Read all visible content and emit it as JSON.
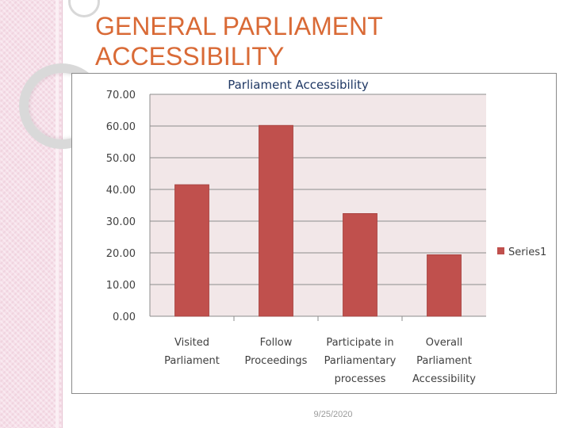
{
  "slide": {
    "title_line1": "GENERAL PARLIAMENT",
    "title_line2": "ACCESSIBILITY",
    "date": "9/25/2020"
  },
  "colors": {
    "title": "#d96a36",
    "bar": "#c0504d",
    "plot_background": "#f2e7e8"
  },
  "chart_data": {
    "type": "bar",
    "title": "Parliament Accessibility",
    "categories": [
      [
        "Visited",
        "Parliament"
      ],
      [
        "Follow",
        "Proceedings"
      ],
      [
        "Participate in",
        "Parliamentary",
        "processes"
      ],
      [
        "Overall",
        "Parliament",
        "Accessibility"
      ]
    ],
    "series": [
      {
        "name": "Series1",
        "values": [
          41.5,
          60.2,
          32.4,
          19.4
        ]
      }
    ],
    "ylim": [
      0,
      70
    ],
    "yticks": [
      "0.00",
      "10.00",
      "20.00",
      "30.00",
      "40.00",
      "50.00",
      "60.00",
      "70.00"
    ],
    "grid": true,
    "legend": "right"
  }
}
